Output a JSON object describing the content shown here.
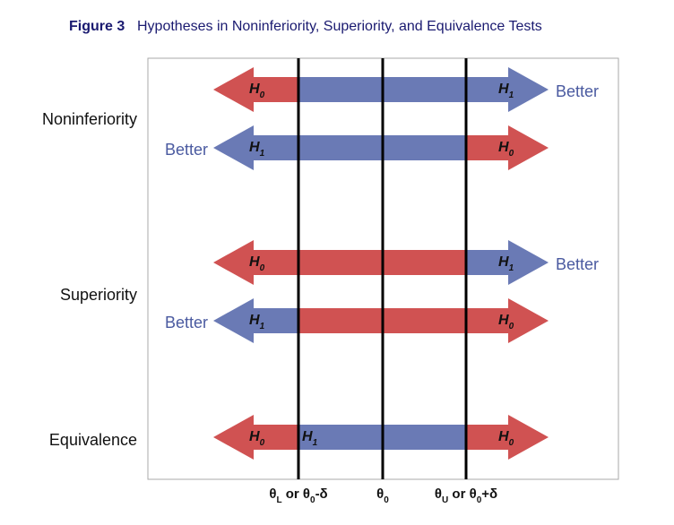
{
  "figure_label": "Figure 3",
  "title": "Hypotheses in Noninferiority, Superiority, and Equivalence Tests",
  "groups": [
    {
      "label": "Noninferiority",
      "arrows": [
        {
          "segments": [
            {
              "color": "#d05252",
              "main": "H",
              "sub": "0"
            },
            {
              "color": "#6a7ab5",
              "main": "H",
              "sub": "1"
            }
          ],
          "better": "Better",
          "better_side": "right"
        },
        {
          "segments": [
            {
              "color": "#6a7ab5",
              "main": "H",
              "sub": "1"
            },
            {
              "color": "#d05252",
              "main": "H",
              "sub": "0"
            }
          ],
          "better": "Better",
          "better_side": "left"
        }
      ]
    },
    {
      "label": "Superiority",
      "arrows": [
        {
          "segments": [
            {
              "color": "#d05252",
              "main": "H",
              "sub": "0"
            },
            {
              "color": "#6a7ab5",
              "main": "H",
              "sub": "1"
            }
          ],
          "better": "Better",
          "better_side": "right"
        },
        {
          "segments": [
            {
              "color": "#6a7ab5",
              "main": "H",
              "sub": "1"
            },
            {
              "color": "#d05252",
              "main": "H",
              "sub": "0"
            }
          ],
          "better": "Better",
          "better_side": "left"
        }
      ]
    },
    {
      "label": "Equivalence",
      "arrows": [
        {
          "segments": [
            {
              "color": "#d05252",
              "main": "H",
              "sub": "0"
            },
            {
              "color": "#6a7ab5",
              "main": "H",
              "sub": "1"
            },
            {
              "color": "#d05252",
              "main": "H",
              "sub": "0"
            }
          ]
        }
      ]
    }
  ],
  "axis_labels": [
    [
      {
        "text": "θ"
      },
      {
        "sub": "L"
      },
      {
        "text": " or θ"
      },
      {
        "sub": "0"
      },
      {
        "text": "-δ"
      }
    ],
    [
      {
        "text": "θ"
      },
      {
        "sub": "0"
      }
    ],
    [
      {
        "text": "θ"
      },
      {
        "sub": "U"
      },
      {
        "text": " or θ"
      },
      {
        "sub": "0"
      },
      {
        "text": "+δ"
      }
    ]
  ]
}
